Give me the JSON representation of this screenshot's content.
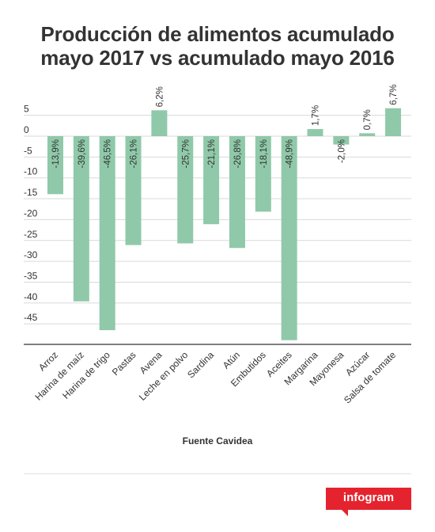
{
  "title_line1": "Producción de alimentos acumulado",
  "title_line2": "mayo 2017 vs acumulado mayo 2016",
  "source": "Fuente Cavidea",
  "logo": "infogram",
  "colors": {
    "bar": "#8fc9a9",
    "grid": "#d9d9d9",
    "axis": "#333333",
    "text": "#333333",
    "logo": "#e5232e"
  },
  "chart_data": {
    "type": "bar",
    "title": "",
    "xlabel": "",
    "ylabel": "",
    "ylim": [
      -50,
      6
    ],
    "yticks": [
      5,
      0,
      -5,
      -10,
      -15,
      -20,
      -25,
      -30,
      -35,
      -40,
      -45
    ],
    "grid": true,
    "categories": [
      "Arroz",
      "Harina de maíz",
      "Harina de trigo",
      "Pastas",
      "Avena",
      "Leche en polvo",
      "Sardina",
      "Atún",
      "Embutidos",
      "Aceites",
      "Margarina",
      "Mayonesa",
      "Azúcar",
      "Salsa de tomate"
    ],
    "values": [
      -13.9,
      -39.6,
      -46.5,
      -26.1,
      6.2,
      -25.7,
      -21.1,
      -26.8,
      -18.1,
      -48.9,
      1.7,
      -2.0,
      0.7,
      6.7
    ],
    "labels": [
      "-13,9%",
      "-39,6%",
      "-46,5%",
      "-26,1%",
      "6,2%",
      "-25,7%",
      "-21,1%",
      "-26,8%",
      "-18,1%",
      "-48,9%",
      "1,7%",
      "-2,0%",
      "0,7%",
      "6,7%"
    ]
  }
}
